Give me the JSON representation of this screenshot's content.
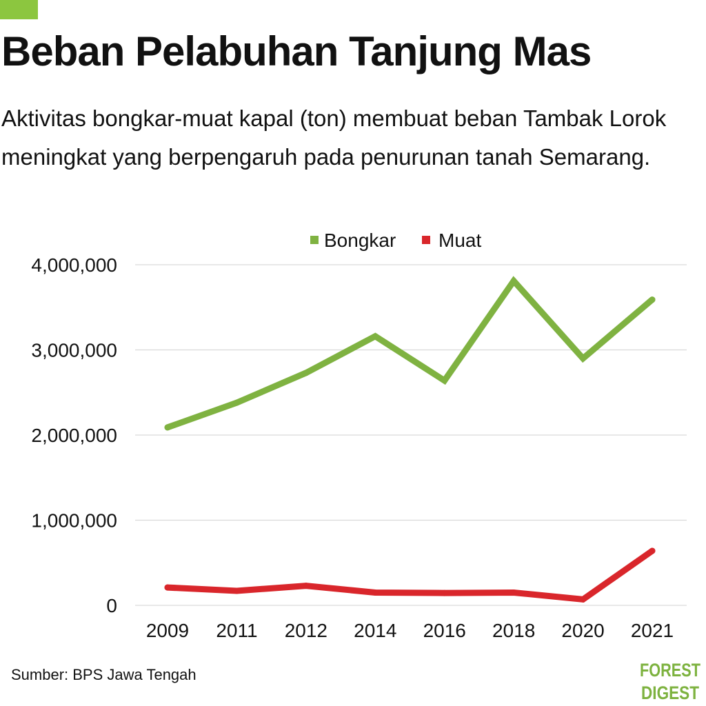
{
  "header": {
    "title": "Beban Pelabuhan Tanjung Mas",
    "subtitle": "Aktivitas bongkar-muat kapal (ton) membuat beban Tambak Lorok meningkat yang berpengaruh pada penurunan tanah Semarang."
  },
  "colors": {
    "accent": "#8cc63f",
    "bongkar": "#7fb241",
    "muat": "#d9262b",
    "grid": "#d9d9d9",
    "logo": "#7db23f"
  },
  "chart_data": {
    "type": "line",
    "x": [
      "2009",
      "2011",
      "2012",
      "2014",
      "2016",
      "2018",
      "2020",
      "2021"
    ],
    "series": [
      {
        "name": "Bongkar",
        "values": [
          2090000,
          2380000,
          2730000,
          3160000,
          2640000,
          3810000,
          2900000,
          3590000
        ]
      },
      {
        "name": "Muat",
        "values": [
          210000,
          170000,
          230000,
          150000,
          145000,
          150000,
          70000,
          640000
        ]
      }
    ],
    "ylim": [
      0,
      4000000
    ],
    "yticks": [
      "0",
      "1,000,000",
      "2,000,000",
      "3,000,000",
      "4,000,000"
    ],
    "legend": "top-center",
    "grid": true,
    "xlabel": "",
    "ylabel": ""
  },
  "footer": {
    "source": "Sumber: BPS Jawa Tengah",
    "logo_line1": "FOREST",
    "logo_line2": "DIGEST"
  }
}
